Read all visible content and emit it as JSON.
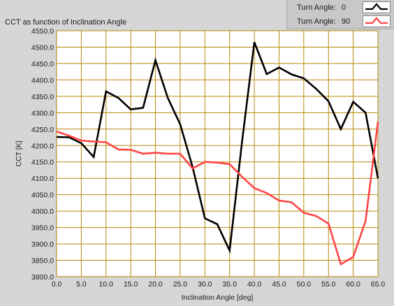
{
  "chart_data": {
    "type": "line",
    "title": "CCT as function of Inclination Angle",
    "xlabel": "Inclination Angle [deg]",
    "ylabel": "CCT [K]",
    "xlim": [
      0,
      65
    ],
    "ylim": [
      3800,
      4550
    ],
    "x_ticks": [
      "0.0",
      "5.0",
      "10.0",
      "15.0",
      "20.0",
      "25.0",
      "30.0",
      "35.0",
      "40.0",
      "45.0",
      "50.0",
      "55.0",
      "60.0",
      "65.0"
    ],
    "y_ticks": [
      "4550.0",
      "4500.0",
      "4450.0",
      "4400.0",
      "4350.0",
      "4300.0",
      "4250.0",
      "4200.0",
      "4150.0",
      "4100.0",
      "4050.0",
      "4000.0",
      "3950.0",
      "3900.0",
      "3850.0",
      "3800.0"
    ],
    "grid": true,
    "legend_position": "top-right",
    "legend_label": "Turn Angle:",
    "series": [
      {
        "legend_value": "0",
        "color": "#000000",
        "x": [
          0,
          2.5,
          5,
          7.5,
          10,
          12.5,
          15,
          17.5,
          20,
          22.5,
          25,
          27.5,
          30,
          32.5,
          35,
          37.5,
          40,
          42.5,
          45,
          47.5,
          50,
          52.5,
          55,
          57.5,
          60,
          62.5,
          65
        ],
        "values": [
          4226,
          4225,
          4207,
          4165,
          4365,
          4345,
          4310,
          4315,
          4460,
          4345,
          4265,
          4135,
          3978,
          3960,
          3880,
          4210,
          4515,
          4418,
          4438,
          4417,
          4405,
          4373,
          4335,
          4250,
          4333,
          4300,
          4100
        ]
      },
      {
        "legend_value": "90",
        "color": "#ff4444",
        "x": [
          0,
          2.5,
          5,
          7.5,
          10,
          12.5,
          15,
          17.5,
          20,
          22.5,
          25,
          27.5,
          30,
          32.5,
          35,
          37.5,
          40,
          42.5,
          45,
          47.5,
          50,
          52.5,
          55,
          57.5,
          60,
          62.5,
          65
        ],
        "values": [
          4243,
          4230,
          4215,
          4212,
          4210,
          4188,
          4187,
          4175,
          4178,
          4175,
          4175,
          4130,
          4150,
          4148,
          4143,
          4105,
          4070,
          4055,
          4032,
          4027,
          3995,
          3985,
          3962,
          3838,
          3860,
          3970,
          4272
        ]
      }
    ]
  }
}
